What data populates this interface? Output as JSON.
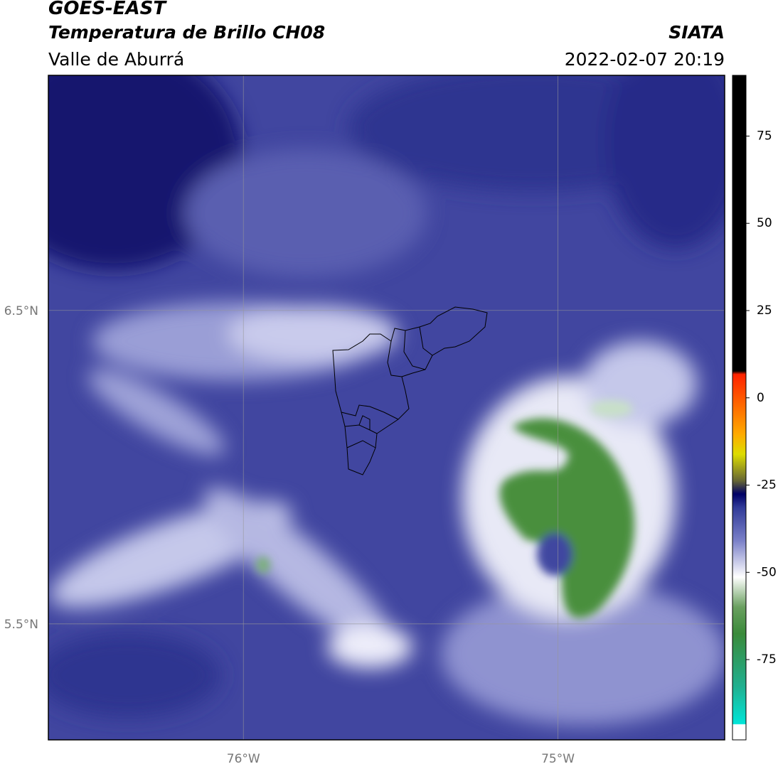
{
  "header": {
    "title": "GOES-EAST",
    "subtitle": "Temperatura de Brillo CH08",
    "region": "Valle de Aburrá",
    "source": "SIATA",
    "timestamp": "2022-02-07 20:19"
  },
  "map": {
    "xlim": [
      -76.62,
      -74.47
    ],
    "ylim": [
      5.13,
      7.25
    ],
    "xticks": [
      {
        "value": -76,
        "label": "76°W"
      },
      {
        "value": -75,
        "label": "75°W"
      }
    ],
    "yticks": [
      {
        "value": 6.5,
        "label": "6.5°N"
      },
      {
        "value": 5.5,
        "label": "5.5°N"
      }
    ],
    "grid": true,
    "colorbar": {
      "lim": [
        -98,
        92.4
      ],
      "ticks": [
        75,
        50,
        25,
        0,
        -25,
        -50,
        -75
      ]
    }
  }
}
